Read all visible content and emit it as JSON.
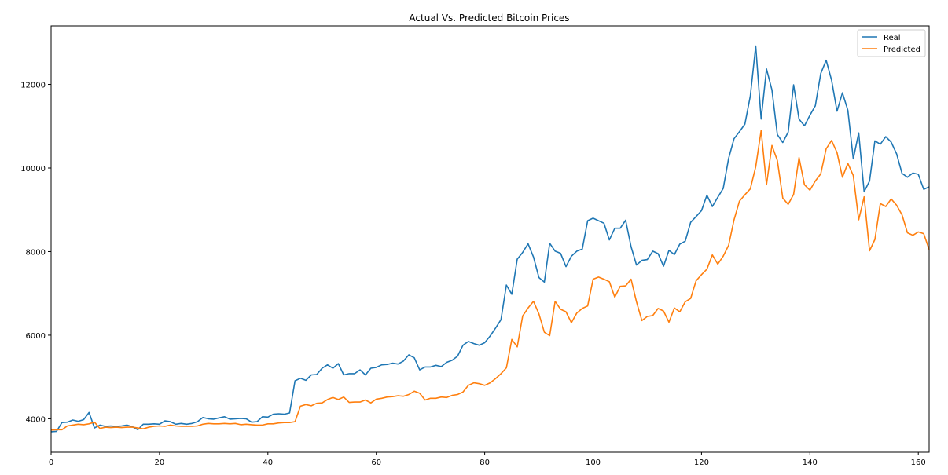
{
  "chart_data": {
    "type": "line",
    "title": "Actual Vs. Predicted Bitcoin Prices",
    "xlabel": "",
    "ylabel": "",
    "xlim": [
      0,
      162
    ],
    "ylim": [
      3200,
      13400
    ],
    "x_ticks": [
      0,
      20,
      40,
      60,
      80,
      100,
      120,
      140,
      160
    ],
    "y_ticks": [
      4000,
      6000,
      8000,
      10000,
      12000
    ],
    "grid": false,
    "legend_position": "top-right",
    "colors": {
      "Real": "#1f77b4",
      "Predicted": "#ff7f0e"
    },
    "x": [
      0,
      1,
      2,
      3,
      4,
      5,
      6,
      7,
      8,
      9,
      10,
      11,
      12,
      13,
      14,
      15,
      16,
      17,
      18,
      19,
      20,
      21,
      22,
      23,
      24,
      25,
      26,
      27,
      28,
      29,
      30,
      31,
      32,
      33,
      34,
      35,
      36,
      37,
      38,
      39,
      40,
      41,
      42,
      43,
      44,
      45,
      46,
      47,
      48,
      49,
      50,
      51,
      52,
      53,
      54,
      55,
      56,
      57,
      58,
      59,
      60,
      61,
      62,
      63,
      64,
      65,
      66,
      67,
      68,
      69,
      70,
      71,
      72,
      73,
      74,
      75,
      76,
      77,
      78,
      79,
      80,
      81,
      82,
      83,
      84,
      85,
      86,
      87,
      88,
      89,
      90,
      91,
      92,
      93,
      94,
      95,
      96,
      97,
      98,
      99,
      100,
      101,
      102,
      103,
      104,
      105,
      106,
      107,
      108,
      109,
      110,
      111,
      112,
      113,
      114,
      115,
      116,
      117,
      118,
      119,
      120,
      121,
      122,
      123,
      124,
      125,
      126,
      127,
      128,
      129,
      130,
      131,
      132,
      133,
      134,
      135,
      136,
      137,
      138,
      139,
      140,
      141,
      142,
      143,
      144,
      145,
      146,
      147,
      148,
      149,
      150,
      151,
      152,
      153,
      154,
      155,
      156,
      157,
      158,
      159,
      160,
      161,
      162
    ],
    "series": [
      {
        "name": "Real",
        "values": [
          3690,
          3700,
          3910,
          3920,
          3970,
          3940,
          3980,
          4150,
          3780,
          3850,
          3820,
          3830,
          3820,
          3830,
          3850,
          3810,
          3740,
          3870,
          3870,
          3880,
          3870,
          3950,
          3930,
          3870,
          3890,
          3870,
          3890,
          3930,
          4030,
          4000,
          3990,
          4020,
          4050,
          3990,
          4000,
          4010,
          4000,
          3920,
          3930,
          4050,
          4040,
          4110,
          4120,
          4110,
          4140,
          4910,
          4970,
          4920,
          5050,
          5060,
          5210,
          5290,
          5210,
          5320,
          5050,
          5080,
          5080,
          5170,
          5050,
          5210,
          5230,
          5290,
          5300,
          5330,
          5310,
          5380,
          5530,
          5460,
          5170,
          5240,
          5240,
          5280,
          5250,
          5350,
          5400,
          5500,
          5760,
          5850,
          5800,
          5760,
          5820,
          5980,
          6170,
          6370,
          7200,
          6980,
          7820,
          7980,
          8190,
          7870,
          7380,
          7270,
          8200,
          8010,
          7960,
          7640,
          7890,
          8010,
          8060,
          8740,
          8800,
          8740,
          8680,
          8280,
          8560,
          8560,
          8750,
          8120,
          7680,
          7790,
          7810,
          8010,
          7950,
          7650,
          8030,
          7930,
          8180,
          8250,
          8700,
          8840,
          8980,
          9350,
          9080,
          9300,
          9510,
          10230,
          10700,
          10870,
          11050,
          11720,
          12920,
          11170,
          12370,
          11870,
          10800,
          10610,
          10860,
          11990,
          11170,
          11010,
          11260,
          11490,
          12260,
          12580,
          12100,
          11360,
          11800,
          11380,
          10220,
          10840,
          9430,
          9690,
          10650,
          10570,
          10750,
          10620,
          10340,
          9870,
          9780,
          9880,
          9850,
          9490,
          9550
        ]
      },
      {
        "name": "Predicted",
        "values": [
          3730,
          3740,
          3740,
          3830,
          3850,
          3870,
          3860,
          3880,
          3920,
          3770,
          3800,
          3790,
          3800,
          3790,
          3800,
          3800,
          3780,
          3760,
          3800,
          3820,
          3830,
          3820,
          3850,
          3830,
          3820,
          3820,
          3820,
          3830,
          3870,
          3890,
          3880,
          3880,
          3890,
          3880,
          3890,
          3860,
          3870,
          3860,
          3850,
          3850,
          3880,
          3880,
          3900,
          3910,
          3910,
          3930,
          4300,
          4340,
          4310,
          4370,
          4380,
          4460,
          4510,
          4460,
          4520,
          4390,
          4400,
          4400,
          4450,
          4380,
          4470,
          4490,
          4520,
          4530,
          4550,
          4540,
          4580,
          4660,
          4610,
          4450,
          4490,
          4490,
          4520,
          4510,
          4560,
          4580,
          4640,
          4800,
          4860,
          4840,
          4800,
          4860,
          4960,
          5080,
          5220,
          5900,
          5720,
          6460,
          6650,
          6810,
          6510,
          6070,
          5990,
          6810,
          6620,
          6560,
          6300,
          6530,
          6640,
          6700,
          7340,
          7390,
          7340,
          7280,
          6910,
          7170,
          7180,
          7340,
          6800,
          6350,
          6450,
          6470,
          6640,
          6580,
          6310,
          6650,
          6560,
          6800,
          6880,
          7300,
          7450,
          7580,
          7920,
          7700,
          7890,
          8150,
          8760,
          9210,
          9360,
          9500,
          10030,
          10900,
          9600,
          10540,
          10180,
          9280,
          9130,
          9370,
          10250,
          9600,
          9470,
          9690,
          9860,
          10460,
          10660,
          10370,
          9780,
          10110,
          9820,
          8760,
          9310,
          8020,
          8290,
          9150,
          9080,
          9260,
          9110,
          8880,
          8450,
          8390,
          8470,
          8430,
          8050
        ]
      }
    ]
  }
}
